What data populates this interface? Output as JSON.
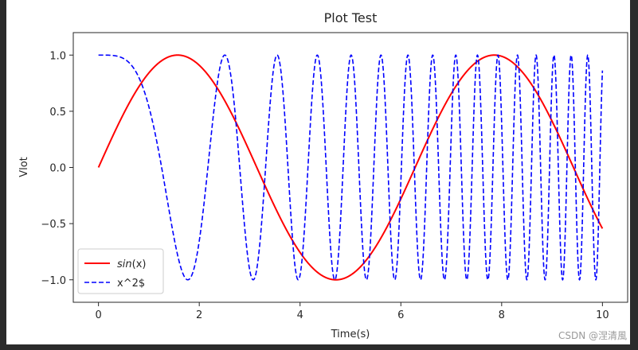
{
  "watermark": "CSDN @涅清風",
  "chart_data": {
    "type": "line",
    "title": "Plot Test",
    "xlabel": "Time(s)",
    "ylabel": "Vlot",
    "xlim": [
      -0.5,
      10.5
    ],
    "ylim": [
      -1.2,
      1.2
    ],
    "xticks": [
      0,
      2,
      4,
      6,
      8,
      10
    ],
    "xtick_labels": [
      "0",
      "2",
      "4",
      "6",
      "8",
      "10"
    ],
    "yticks": [
      1.0,
      0.5,
      0.0,
      -0.5,
      -1.0
    ],
    "ytick_labels": [
      "1.0",
      "0.5",
      "0.0",
      "−0.5",
      "−1.0"
    ],
    "grid": false,
    "legend_position": "lower-left",
    "series": [
      {
        "name_prefix": "sin",
        "name_suffix": "(x)",
        "function": "sin(x)",
        "x_range": [
          0,
          10
        ],
        "color": "#ff0000",
        "style": "solid"
      },
      {
        "name": "x^2$",
        "function": "cos(x^2)",
        "x_range": [
          0,
          10
        ],
        "color": "#0000ff",
        "style": "dashed"
      }
    ]
  }
}
